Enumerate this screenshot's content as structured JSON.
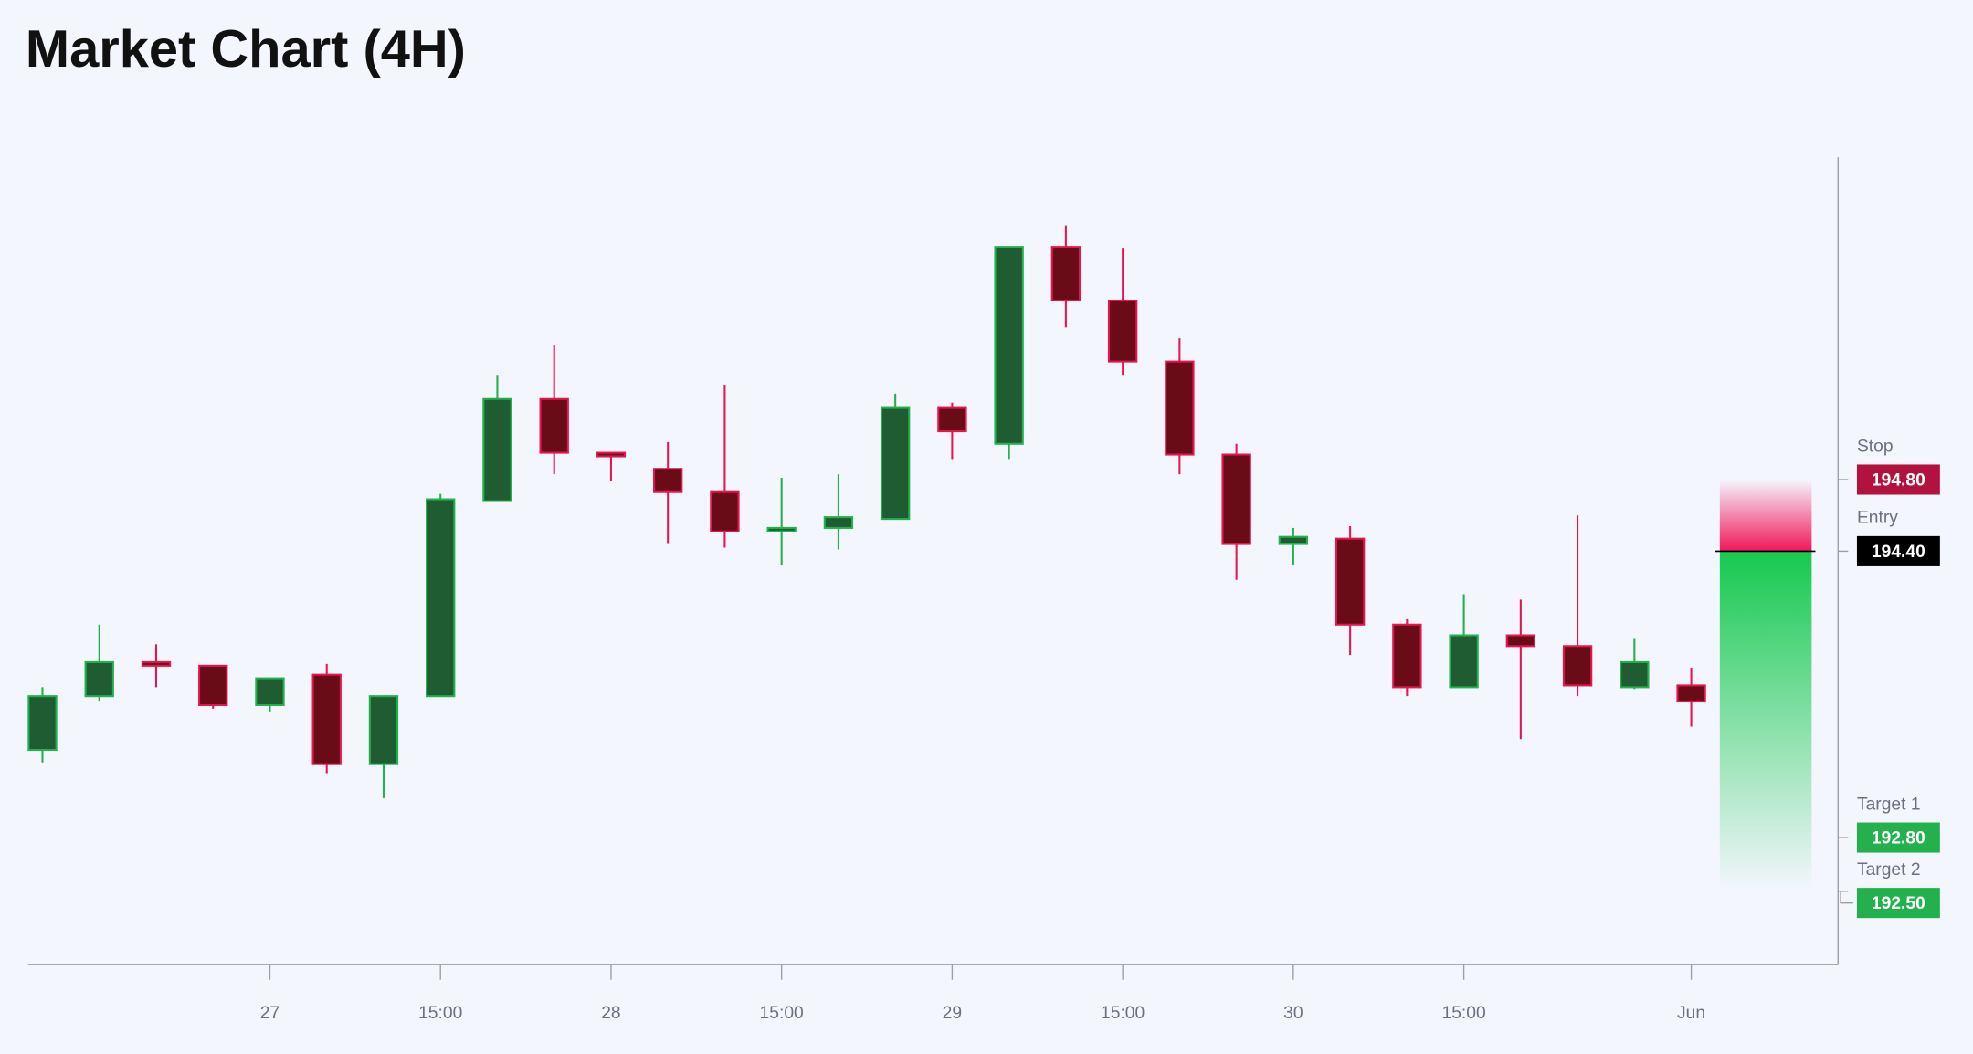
{
  "chart_data": {
    "type": "candlestick",
    "title": "Market Chart (4H)",
    "categories": [
      null,
      null,
      null,
      null,
      "27",
      null,
      null,
      "15:00",
      null,
      null,
      "28",
      null,
      null,
      "15:00",
      null,
      null,
      "29",
      null,
      null,
      "15:00",
      null,
      null,
      "30",
      null,
      null,
      "15:00",
      null,
      null,
      null,
      "Jun"
    ],
    "open": [
      193.29,
      193.59,
      193.78,
      193.76,
      193.54,
      193.71,
      193.21,
      193.59,
      194.68,
      195.25,
      194.95,
      194.86,
      194.73,
      194.51,
      194.53,
      194.58,
      195.2,
      195.0,
      196.1,
      195.8,
      195.46,
      194.94,
      194.44,
      194.47,
      193.99,
      193.64,
      193.93,
      193.87,
      193.64,
      193.65
    ],
    "high": [
      193.64,
      193.99,
      193.88,
      193.76,
      193.69,
      193.77,
      193.59,
      194.72,
      195.38,
      195.55,
      194.95,
      195.01,
      195.33,
      194.81,
      194.83,
      195.28,
      195.23,
      196.1,
      196.22,
      196.09,
      195.59,
      195.0,
      194.53,
      194.54,
      194.02,
      194.16,
      194.13,
      194.6,
      193.91,
      193.75
    ],
    "low": [
      193.22,
      193.56,
      193.64,
      193.52,
      193.5,
      193.16,
      193.02,
      193.59,
      194.68,
      194.83,
      194.79,
      194.44,
      194.42,
      194.32,
      194.41,
      194.58,
      194.91,
      194.91,
      195.65,
      195.38,
      194.83,
      194.24,
      194.32,
      193.82,
      193.59,
      193.64,
      193.35,
      193.59,
      193.63,
      193.42
    ],
    "close": [
      193.59,
      193.78,
      193.76,
      193.54,
      193.69,
      193.21,
      193.59,
      194.69,
      195.25,
      194.95,
      194.93,
      194.73,
      194.51,
      194.53,
      194.59,
      195.2,
      195.07,
      196.1,
      195.8,
      195.46,
      194.94,
      194.44,
      194.48,
      193.99,
      193.64,
      193.93,
      193.87,
      193.65,
      193.78,
      193.56
    ],
    "up_color": "#1f5c31",
    "up_border": "#22b14c",
    "down_color": "#6a0c17",
    "down_border": "#e4164f",
    "ylim": [
      192.09,
      196.6
    ],
    "levels": [
      {
        "name": "Stop",
        "price": {
          "value": 194.8,
          "label": "194.80"
        },
        "color": "#b3123f"
      },
      {
        "name": "Entry",
        "price": {
          "value": 194.4,
          "label": "194.40"
        },
        "color": "#000000"
      },
      {
        "name": "Target 1",
        "price": {
          "value": 192.8,
          "label": "192.80"
        },
        "color": "#22b14c"
      },
      {
        "name": "Target 2",
        "price": {
          "value": 192.5,
          "label": "192.50"
        },
        "color": "#22b14c"
      }
    ]
  }
}
